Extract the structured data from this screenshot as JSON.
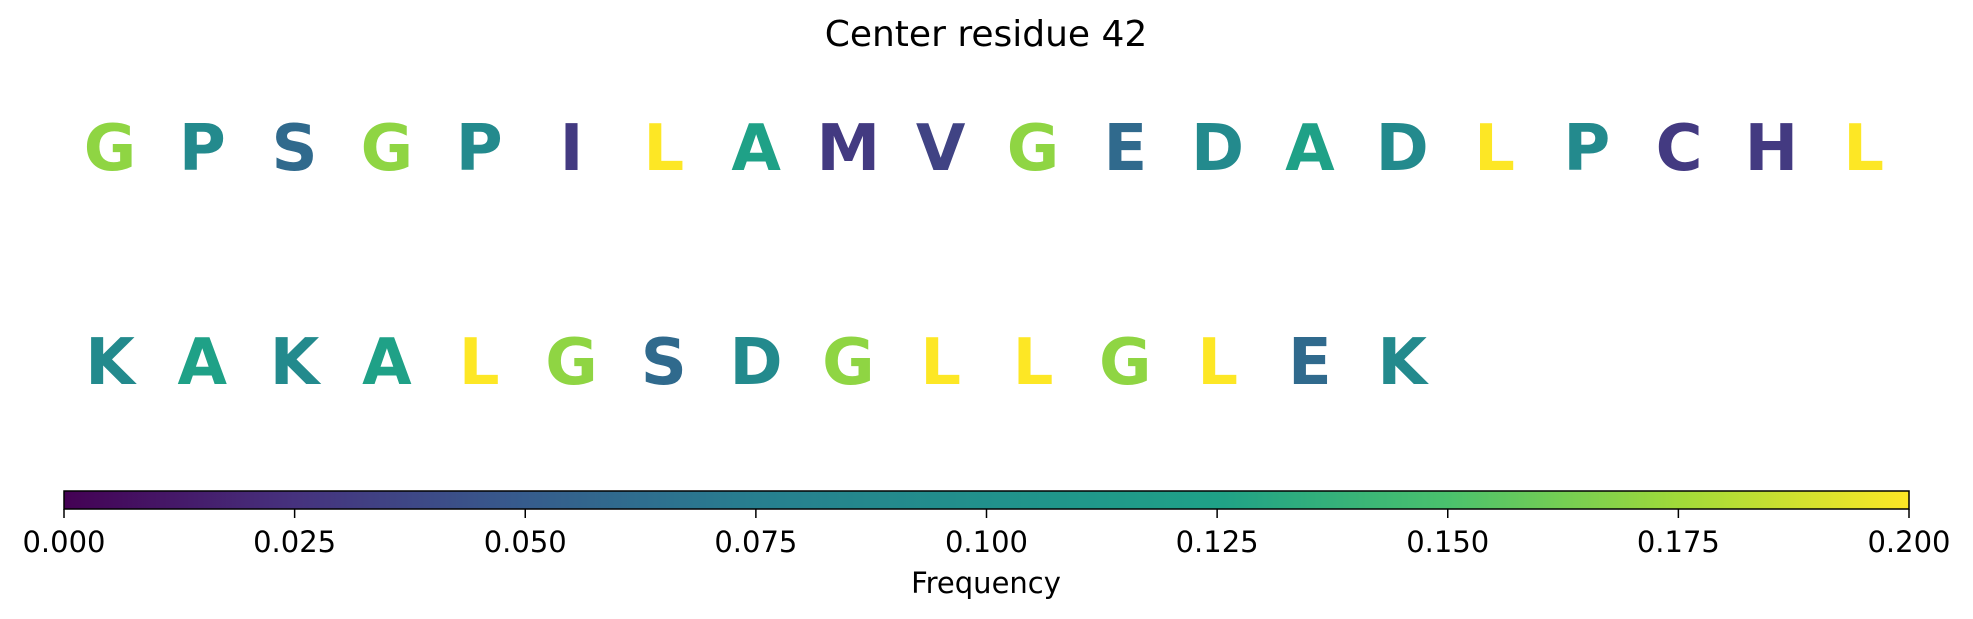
{
  "chart_data": {
    "type": "heatmap",
    "title": "Center residue 42",
    "rows": [
      {
        "residues": [
          "G",
          "P",
          "S",
          "G",
          "P",
          "I",
          "L",
          "A",
          "M",
          "V",
          "G",
          "E",
          "D",
          "A",
          "D",
          "L",
          "P",
          "C",
          "H",
          "L"
        ],
        "frequencies": [
          0.17,
          0.09,
          0.06,
          0.17,
          0.09,
          0.03,
          0.2,
          0.125,
          0.03,
          0.035,
          0.17,
          0.06,
          0.09,
          0.125,
          0.09,
          0.2,
          0.09,
          0.03,
          0.03,
          0.2
        ]
      },
      {
        "residues": [
          "K",
          "A",
          "K",
          "A",
          "L",
          "G",
          "S",
          "D",
          "G",
          "L",
          "L",
          "G",
          "L",
          "E",
          "K"
        ],
        "frequencies": [
          0.09,
          0.125,
          0.09,
          0.125,
          0.2,
          0.17,
          0.06,
          0.09,
          0.17,
          0.2,
          0.2,
          0.17,
          0.2,
          0.06,
          0.09
        ]
      }
    ],
    "colorbar": {
      "label": "Frequency",
      "colormap": "viridis",
      "range": [
        0.0,
        0.2
      ],
      "ticks": [
        0.0,
        0.025,
        0.05,
        0.075,
        0.1,
        0.125,
        0.15,
        0.175,
        0.2
      ],
      "tick_labels": [
        "0.000",
        "0.025",
        "0.050",
        "0.075",
        "0.100",
        "0.125",
        "0.150",
        "0.175",
        "0.200"
      ]
    }
  }
}
